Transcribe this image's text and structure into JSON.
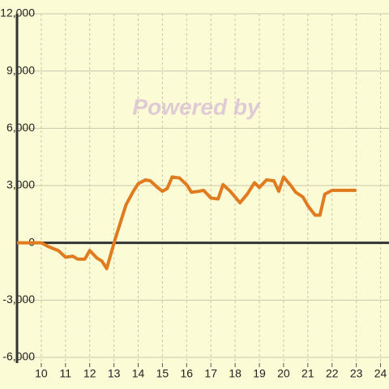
{
  "chart_data": {
    "type": "line",
    "annotation": "Powered by",
    "x": [
      9,
      9.5,
      10,
      10.3,
      10.7,
      11,
      11.3,
      11.5,
      11.8,
      12,
      12.3,
      12.5,
      12.7,
      13.05,
      13.3,
      13.5,
      13.8,
      14,
      14.3,
      14.5,
      14.8,
      15,
      15.2,
      15.4,
      15.7,
      16,
      16.2,
      16.5,
      16.7,
      17,
      17.3,
      17.5,
      17.8,
      18,
      18.2,
      18.5,
      18.8,
      19,
      19.3,
      19.6,
      19.8,
      20,
      20.3,
      20.5,
      20.8,
      21,
      21.3,
      21.5,
      21.7,
      22,
      23
    ],
    "values": [
      0,
      0,
      0,
      -200,
      -400,
      -750,
      -700,
      -850,
      -850,
      -400,
      -800,
      -950,
      -1350,
      200,
      1200,
      2000,
      2700,
      3100,
      3300,
      3250,
      2900,
      2700,
      2850,
      3450,
      3400,
      3050,
      2650,
      2700,
      2750,
      2350,
      2300,
      3050,
      2700,
      2400,
      2100,
      2550,
      3150,
      2900,
      3300,
      3250,
      2700,
      3450,
      3000,
      2650,
      2400,
      1950,
      1450,
      1450,
      2550,
      2750,
      2750
    ],
    "color": "#e07b20",
    "xlim": [
      9,
      24.35
    ],
    "xticks": [
      10,
      11,
      12,
      13,
      14,
      15,
      16,
      17,
      18,
      19,
      20,
      21,
      22,
      23,
      24
    ],
    "ylim": [
      -6000,
      12000
    ],
    "yticks": [
      {
        "value": -6000,
        "label": "-6,000"
      },
      {
        "value": -3000,
        "label": "-3,000"
      },
      0,
      {
        "value": 3000,
        "label": "3,000"
      },
      {
        "value": 6000,
        "label": "6,000"
      },
      {
        "value": 9000,
        "label": "9,000"
      },
      {
        "value": 12000,
        "label": "12,000"
      }
    ],
    "grid": true
  }
}
